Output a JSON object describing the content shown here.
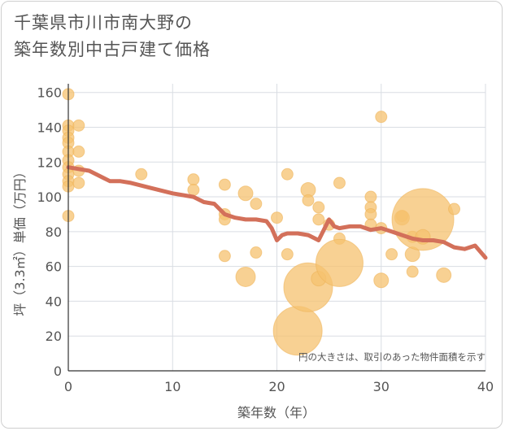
{
  "title": "千葉県市川市南大野の\n築年数別中古戸建て価格",
  "chart_data": {
    "type": "scatter",
    "xlabel": "築年数（年）",
    "ylabel": "坪（3.3㎡）単価（万円）",
    "xlim": [
      0,
      40
    ],
    "ylim": [
      0,
      165
    ],
    "x_ticks": [
      0,
      10,
      20,
      30,
      40
    ],
    "y_ticks": [
      0,
      20,
      40,
      60,
      80,
      100,
      120,
      140,
      160
    ],
    "grid": true,
    "annotation": "円の大きさは、取引のあった物件面積を示す",
    "colors": {
      "bubble": "#f5c16f",
      "bubble_stroke": "#eeb45a",
      "line": "#d3705a",
      "grid": "#d9dde3"
    },
    "bubbles": [
      {
        "x": 0,
        "y": 159,
        "r": 7
      },
      {
        "x": 0,
        "y": 141,
        "r": 7
      },
      {
        "x": 0,
        "y": 138,
        "r": 7
      },
      {
        "x": 0,
        "y": 134,
        "r": 7
      },
      {
        "x": 0,
        "y": 131,
        "r": 7
      },
      {
        "x": 0,
        "y": 126,
        "r": 7
      },
      {
        "x": 0,
        "y": 121,
        "r": 7
      },
      {
        "x": 0,
        "y": 117,
        "r": 7
      },
      {
        "x": 0,
        "y": 113,
        "r": 7
      },
      {
        "x": 0,
        "y": 109,
        "r": 7
      },
      {
        "x": 0,
        "y": 106,
        "r": 7
      },
      {
        "x": 0,
        "y": 89,
        "r": 7
      },
      {
        "x": 1,
        "y": 141,
        "r": 7
      },
      {
        "x": 1,
        "y": 126,
        "r": 7
      },
      {
        "x": 1,
        "y": 115,
        "r": 7
      },
      {
        "x": 1,
        "y": 108,
        "r": 7
      },
      {
        "x": 7,
        "y": 113,
        "r": 7
      },
      {
        "x": 12,
        "y": 110,
        "r": 7
      },
      {
        "x": 12,
        "y": 104,
        "r": 7
      },
      {
        "x": 15,
        "y": 107,
        "r": 7
      },
      {
        "x": 15,
        "y": 90,
        "r": 7
      },
      {
        "x": 15,
        "y": 87,
        "r": 7
      },
      {
        "x": 15,
        "y": 66,
        "r": 7
      },
      {
        "x": 17,
        "y": 102,
        "r": 9
      },
      {
        "x": 17,
        "y": 54,
        "r": 12
      },
      {
        "x": 18,
        "y": 96,
        "r": 7
      },
      {
        "x": 18,
        "y": 68,
        "r": 7
      },
      {
        "x": 20,
        "y": 88,
        "r": 7
      },
      {
        "x": 21,
        "y": 113,
        "r": 7
      },
      {
        "x": 21,
        "y": 67,
        "r": 7
      },
      {
        "x": 22,
        "y": 23,
        "r": 30
      },
      {
        "x": 23,
        "y": 104,
        "r": 9
      },
      {
        "x": 23,
        "y": 98,
        "r": 7
      },
      {
        "x": 23,
        "y": 48,
        "r": 30
      },
      {
        "x": 24,
        "y": 94,
        "r": 7
      },
      {
        "x": 24,
        "y": 87,
        "r": 7
      },
      {
        "x": 24,
        "y": 53,
        "r": 9
      },
      {
        "x": 25,
        "y": 84,
        "r": 7
      },
      {
        "x": 26,
        "y": 108,
        "r": 7
      },
      {
        "x": 26,
        "y": 76,
        "r": 7
      },
      {
        "x": 26,
        "y": 62,
        "r": 29
      },
      {
        "x": 29,
        "y": 100,
        "r": 7
      },
      {
        "x": 29,
        "y": 94,
        "r": 7
      },
      {
        "x": 29,
        "y": 90,
        "r": 7
      },
      {
        "x": 29,
        "y": 84,
        "r": 7
      },
      {
        "x": 30,
        "y": 146,
        "r": 7
      },
      {
        "x": 30,
        "y": 82,
        "r": 7
      },
      {
        "x": 30,
        "y": 52,
        "r": 9
      },
      {
        "x": 31,
        "y": 67,
        "r": 7
      },
      {
        "x": 32,
        "y": 89,
        "r": 7
      },
      {
        "x": 32,
        "y": 88,
        "r": 9
      },
      {
        "x": 33,
        "y": 77,
        "r": 7
      },
      {
        "x": 33,
        "y": 67,
        "r": 9
      },
      {
        "x": 33,
        "y": 57,
        "r": 7
      },
      {
        "x": 34,
        "y": 87,
        "r": 38
      },
      {
        "x": 34,
        "y": 77,
        "r": 9
      },
      {
        "x": 36,
        "y": 55,
        "r": 9
      },
      {
        "x": 37,
        "y": 93,
        "r": 7
      }
    ],
    "trend": {
      "x": [
        0,
        2,
        4,
        5,
        6,
        8,
        10,
        12,
        13,
        14,
        15,
        16,
        17,
        18,
        19,
        19.5,
        20,
        20.5,
        21,
        22,
        23,
        24,
        25,
        25.5,
        26,
        27,
        28,
        29,
        30,
        31,
        32,
        33,
        34,
        35,
        36,
        37,
        38,
        39,
        40
      ],
      "y": [
        117,
        115,
        109,
        109,
        108,
        105,
        102,
        100,
        97,
        96,
        90,
        88,
        87,
        87,
        86,
        82,
        75,
        78,
        79,
        79,
        78,
        75,
        87,
        83,
        82,
        83,
        83,
        81,
        82,
        80,
        78,
        76,
        75,
        75,
        74,
        71,
        70,
        72,
        65
      ]
    }
  }
}
